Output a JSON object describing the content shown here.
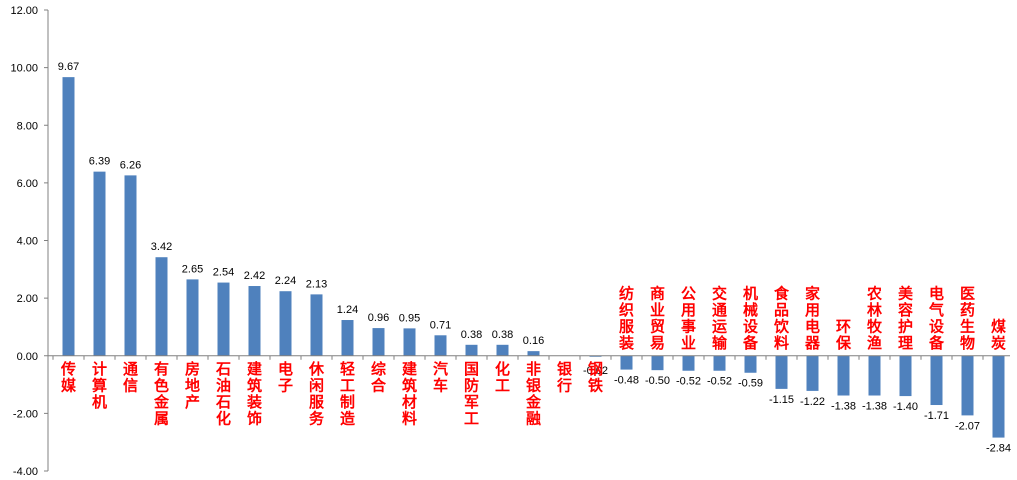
{
  "chart_data": {
    "type": "bar",
    "categories": [
      "传媒",
      "计算机",
      "通信",
      "有色金属",
      "房地产",
      "石油石化",
      "建筑装饰",
      "电子",
      "休闲服务",
      "轻工制造",
      "综合",
      "建筑材料",
      "汽车",
      "国防军工",
      "化工",
      "非银金融",
      "银行",
      "钢铁",
      "纺织服装",
      "商业贸易",
      "公用事业",
      "交通运输",
      "机械设备",
      "食品饮料",
      "家用电器",
      "环保",
      "农林牧渔",
      "美容护理",
      "电气设备",
      "医药生物",
      "煤炭"
    ],
    "values": [
      9.67,
      6.39,
      6.26,
      3.42,
      2.65,
      2.54,
      2.42,
      2.24,
      2.13,
      1.24,
      0.96,
      0.95,
      0.71,
      0.38,
      0.38,
      0.16,
      null,
      -0.02,
      -0.48,
      -0.5,
      -0.52,
      -0.52,
      -0.59,
      -1.15,
      -1.22,
      -1.38,
      -1.38,
      -1.4,
      -1.71,
      -2.07,
      -2.84
    ],
    "value_labels": [
      "9.67",
      "6.39",
      "6.26",
      "3.42",
      "2.65",
      "2.54",
      "2.42",
      "2.24",
      "2.13",
      "1.24",
      "0.96",
      "0.95",
      "0.71",
      "0.38",
      "0.38",
      "0.16",
      "",
      "-0.02",
      "-0.48",
      "-0.50",
      "-0.52",
      "-0.52",
      "-0.59",
      "-1.15",
      "-1.22",
      "-1.38",
      "-1.38",
      "-1.40",
      "-1.71",
      "-2.07",
      "-2.84"
    ],
    "ytick_labels": [
      "12.00",
      "10.00",
      "8.00",
      "6.00",
      "4.00",
      "2.00",
      "0.00",
      "-2.00",
      "-4.00"
    ],
    "ylim": [
      -4,
      12
    ],
    "ytick_step": 2,
    "title": "",
    "xlabel": "",
    "ylabel": "",
    "grid": false,
    "legend": "none",
    "colors": {
      "bar": "#4F81BD",
      "category_label": "#FF0000",
      "axis": "#808080",
      "text": "#000000"
    }
  }
}
